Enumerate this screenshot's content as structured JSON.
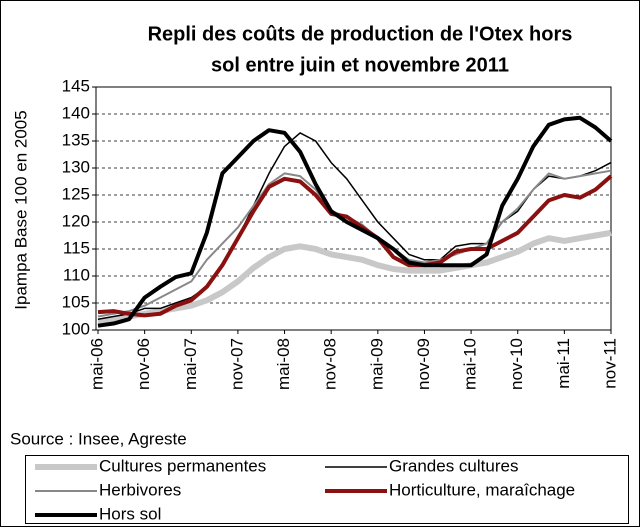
{
  "chart_data": {
    "type": "line",
    "title": [
      "Repli des coûts de production de l'Otex hors",
      "sol entre juin et novembre 2011"
    ],
    "y_label": "Ipampa Base 100 en 2005",
    "source": "Source : Insee, Agreste",
    "categories": [
      "mai-06",
      null,
      null,
      "nov-06",
      null,
      null,
      "mai-07",
      null,
      null,
      "nov-07",
      null,
      null,
      "mai-08",
      null,
      null,
      "nov-08",
      null,
      null,
      "mai-09",
      null,
      null,
      "nov-09",
      null,
      null,
      "mai-10",
      null,
      null,
      "nov-10",
      null,
      null,
      "mai-11",
      null,
      null,
      "nov-11"
    ],
    "ylim": [
      100,
      145
    ],
    "yticks": [
      100,
      105,
      110,
      115,
      120,
      125,
      130,
      135,
      140,
      145
    ],
    "grid": true,
    "series": [
      {
        "name": "Cultures permanentes",
        "color": "#c8c8c8",
        "line_width": 6,
        "values": [
          101.5,
          102,
          102.5,
          103,
          103.5,
          104,
          104.5,
          105.5,
          107,
          109,
          111.5,
          113.5,
          115,
          115.5,
          115,
          114,
          113.5,
          113,
          112,
          111.3,
          111,
          111,
          111,
          111.5,
          112,
          112.5,
          113.5,
          114.5,
          116,
          117,
          116.5,
          117,
          117.5,
          118
        ]
      },
      {
        "name": "Grandes cultures",
        "color": "#000000",
        "line_width": 1.5,
        "values": [
          102,
          102.5,
          103,
          104,
          104,
          105,
          106,
          108,
          112,
          117,
          123,
          129,
          134,
          136.5,
          135,
          131,
          128,
          124,
          120,
          117,
          114,
          113,
          113,
          115.5,
          116,
          116,
          120,
          122,
          126,
          128.5,
          128,
          128.5,
          129.5,
          131
        ]
      },
      {
        "name": "Herbivores",
        "color": "#888888",
        "line_width": 2,
        "values": [
          102.5,
          103,
          103.5,
          104.5,
          106,
          107.5,
          109,
          113,
          116,
          119,
          123,
          127,
          129,
          128.5,
          126,
          122,
          121,
          119.5,
          117,
          115,
          113,
          112.5,
          113,
          114,
          115,
          116,
          120,
          122.5,
          126,
          129,
          128,
          128.5,
          129,
          129.5
        ]
      },
      {
        "name": "Horticulture, maraîchage",
        "color": "#8b1010",
        "line_width": 4,
        "values": [
          103.3,
          103.5,
          103,
          102.7,
          103,
          104.5,
          105.5,
          108,
          112,
          117,
          122,
          126.5,
          128,
          127.5,
          125,
          121.5,
          121,
          119,
          117,
          113.5,
          112,
          112,
          112.5,
          114.5,
          115,
          115,
          116.5,
          118,
          121,
          124,
          125,
          124.5,
          126,
          128.5
        ]
      },
      {
        "name": "Hors sol",
        "color": "#000000",
        "line_width": 4,
        "values": [
          100.8,
          101.2,
          102,
          106,
          108,
          109.8,
          110.5,
          118,
          129,
          132,
          135,
          137,
          136.5,
          133,
          127,
          122,
          120,
          118.5,
          117,
          115,
          112.5,
          112,
          112,
          112,
          112,
          114,
          123,
          128,
          134,
          138,
          139,
          139.3,
          137.5,
          135
        ]
      }
    ]
  }
}
